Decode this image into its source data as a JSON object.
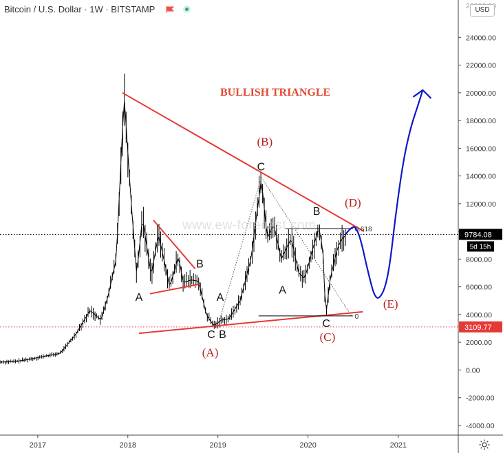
{
  "header": {
    "symbol": "Bitcoin / U.S. Dollar · 1W · BITSTAMP",
    "currency_button": "USD"
  },
  "watermark": "www.ew-forecast.com",
  "chart_data": {
    "type": "line",
    "title": "BULLISH TRIANGLE",
    "x_ticks": [
      "2017",
      "2018",
      "2019",
      "2020",
      "2021"
    ],
    "y_ticks": [
      -4000,
      -2000,
      0,
      2000,
      4000,
      6000,
      8000,
      10000,
      12000,
      14000,
      16000,
      18000,
      20000,
      22000,
      24000
    ],
    "y_tick_labels": [
      "-4000.00",
      "-2000.00",
      "0.00",
      "2000.00",
      "4000.00",
      "6000.00",
      "8000.00",
      "10000.00",
      "12000.00",
      "14000.00",
      "16000.00",
      "18000.00",
      "20000.00",
      "22000.00",
      "24000.00"
    ],
    "y_top_partial_label": "26000.00",
    "ylim": [
      -4500,
      26300
    ],
    "xlim": [
      "2016-08-01",
      "2021-09-01"
    ],
    "grid": false,
    "price_series": {
      "x": [
        "2016-08-01",
        "2016-10-01",
        "2016-12-01",
        "2017-02-01",
        "2017-04-01",
        "2017-06-01",
        "2017-08-01",
        "2017-09-15",
        "2017-10-15",
        "2017-11-15",
        "2017-12-17",
        "2018-01-15",
        "2018-02-06",
        "2018-03-01",
        "2018-04-06",
        "2018-05-05",
        "2018-06-20",
        "2018-07-25",
        "2018-08-14",
        "2018-09-15",
        "2018-10-15",
        "2018-11-15",
        "2018-12-15",
        "2019-01-15",
        "2019-02-15",
        "2019-04-01",
        "2019-05-15",
        "2019-06-26",
        "2019-07-20",
        "2019-08-15",
        "2019-09-15",
        "2019-10-25",
        "2019-11-25",
        "2019-12-18",
        "2020-01-20",
        "2020-02-14",
        "2020-03-01",
        "2020-03-13",
        "2020-04-01",
        "2020-04-30",
        "2020-05-15",
        "2020-06-01"
      ],
      "close": [
        570,
        610,
        780,
        1000,
        1200,
        2500,
        4300,
        3600,
        5500,
        8000,
        19700,
        12000,
        6900,
        11000,
        6800,
        9800,
        6000,
        8200,
        6300,
        6500,
        6400,
        4000,
        3200,
        3600,
        3700,
        5000,
        8000,
        13800,
        9500,
        10500,
        8000,
        9500,
        7000,
        6600,
        8700,
        10300,
        8700,
        3900,
        6700,
        8800,
        9400,
        9700
      ]
    },
    "reference_lines": [
      {
        "label": "9784.08",
        "sublabel": "5d 15h",
        "value": 9784.08,
        "color": "#000000"
      },
      {
        "label": "3109.77",
        "value": 3109.77,
        "color": "#e53935"
      }
    ],
    "fib_levels": [
      {
        "label": "0.618",
        "value": 10200
      },
      {
        "label": "0",
        "value": 3900
      }
    ],
    "triangle_lines": [
      {
        "name": "upper",
        "x": [
          "2017-12-10",
          "2020-08-15"
        ],
        "y": [
          20000,
          10000
        ]
      },
      {
        "name": "lower",
        "x": [
          "2018-02-15",
          "2020-08-10"
        ],
        "y": [
          2650,
          4200
        ]
      }
    ],
    "projection": {
      "x": [
        "2020-06-01",
        "2020-06-20",
        "2020-07-10",
        "2020-08-01",
        "2020-09-01",
        "2020-10-01",
        "2020-11-01",
        "2020-11-25",
        "2020-12-20",
        "2021-01-20",
        "2021-02-20",
        "2021-03-20",
        "2021-04-10",
        "2021-04-25"
      ],
      "y": [
        9784,
        10200,
        10400,
        9500,
        7000,
        5000,
        5500,
        7200,
        11000,
        15000,
        17500,
        19000,
        20200,
        16600
      ]
    },
    "annotations": [
      {
        "text": "(A)",
        "kind": "primary",
        "x": "2018-12-01",
        "y": 1000
      },
      {
        "text": "(B)",
        "kind": "primary",
        "x": "2019-07-10",
        "y": 16200
      },
      {
        "text": "(C)",
        "kind": "primary",
        "x": "2020-03-20",
        "y": 2100
      },
      {
        "text": "(D)",
        "kind": "primary",
        "x": "2020-07-01",
        "y": 11800
      },
      {
        "text": "(E)",
        "kind": "primary",
        "x": "2020-12-01",
        "y": 4500
      },
      {
        "text": "A",
        "kind": "secondary",
        "x": "2018-02-15",
        "y": 5000
      },
      {
        "text": "B",
        "kind": "secondary",
        "x": "2018-10-20",
        "y": 7400
      },
      {
        "text": "C",
        "kind": "secondary",
        "x": "2018-12-05",
        "y": 2300
      },
      {
        "text": "A",
        "kind": "secondary",
        "x": "2019-01-10",
        "y": 5000
      },
      {
        "text": "B",
        "kind": "secondary",
        "x": "2019-01-20",
        "y": 2300
      },
      {
        "text": "C",
        "kind": "secondary",
        "x": "2019-06-25",
        "y": 14400
      },
      {
        "text": "A",
        "kind": "secondary",
        "x": "2019-09-20",
        "y": 5500
      },
      {
        "text": "B",
        "kind": "secondary",
        "x": "2020-02-05",
        "y": 11200
      },
      {
        "text": "C",
        "kind": "secondary",
        "x": "2020-03-15",
        "y": 3100
      }
    ]
  },
  "colors": {
    "accent": "#e53935",
    "projection": "#1018c8",
    "price": "#000000",
    "primary_label": "#b71c1c",
    "title": "#e34a33"
  },
  "icons": {
    "flag": "flag-icon",
    "status": "market-status-icon",
    "settings": "gear-icon"
  }
}
